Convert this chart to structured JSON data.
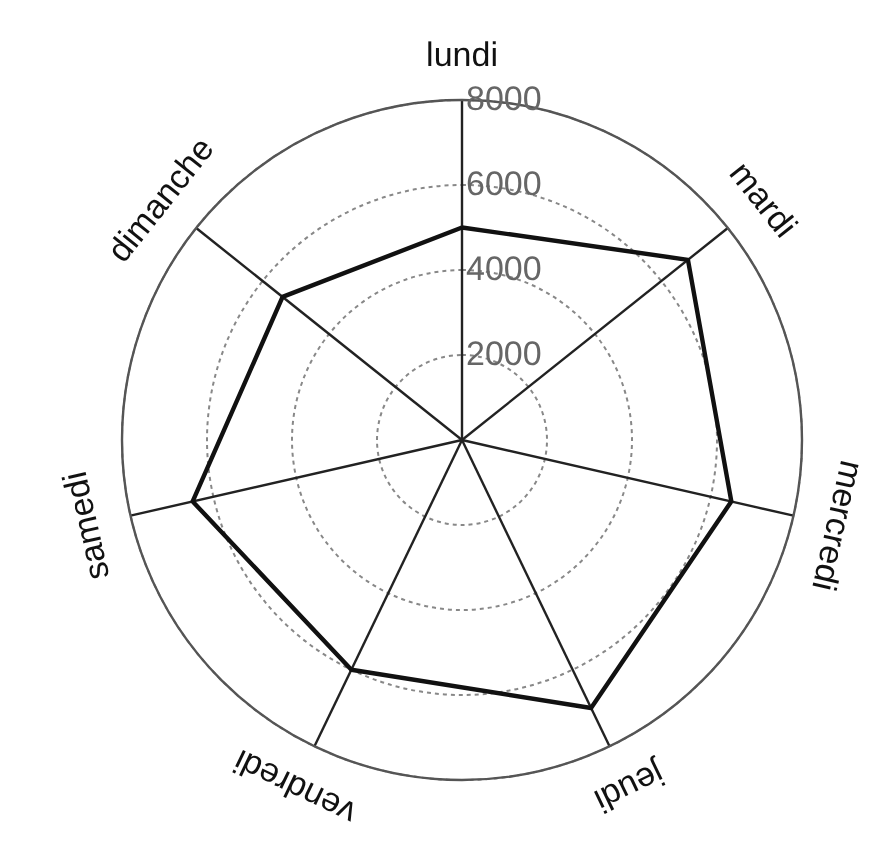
{
  "chart_data": {
    "type": "radar",
    "categories": [
      "lundi",
      "mardi",
      "mercredi",
      "jeudi",
      "vendredi",
      "samedi",
      "dimanche"
    ],
    "series": [
      {
        "color": "#111111",
        "values": [
          5000,
          6800,
          6500,
          7000,
          6000,
          6500,
          5400
        ]
      }
    ],
    "ylim": [
      0,
      8000
    ],
    "yticks": [
      2000,
      4000,
      6000,
      8000
    ],
    "grid": true,
    "marker": "none",
    "line_style": "solid"
  }
}
